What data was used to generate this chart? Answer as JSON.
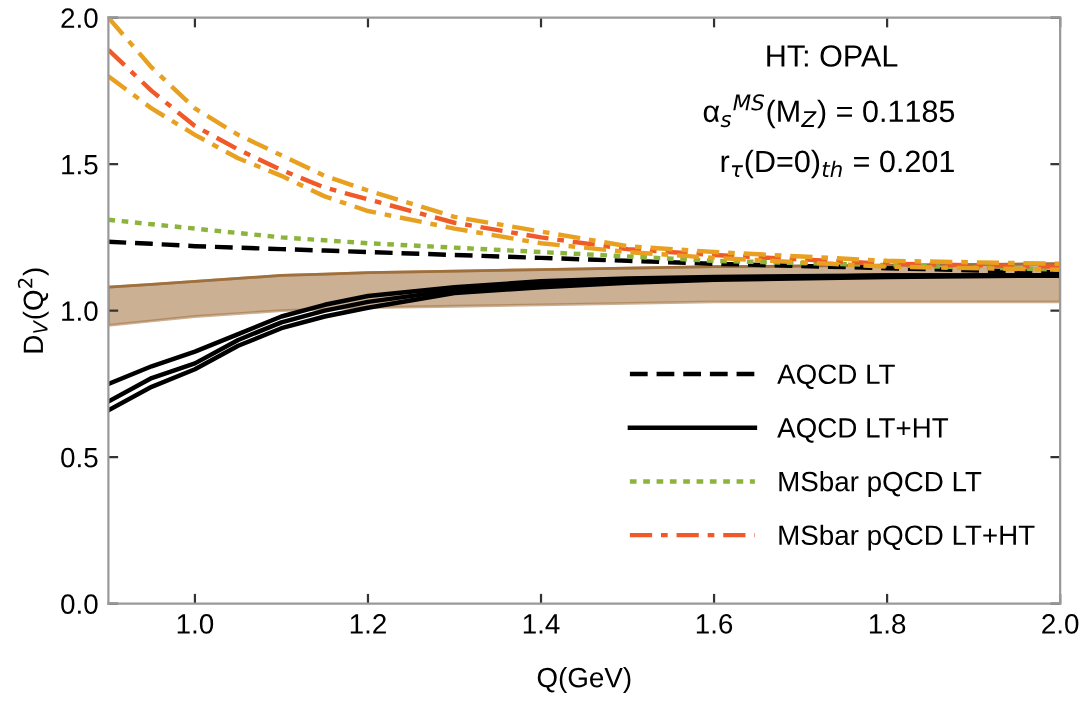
{
  "chart_data": {
    "type": "line",
    "xlabel": "Q(GeV)",
    "ylabel": "D$_{V}$(Q$^{2}$)",
    "annotations": [
      "HT: OPAL",
      "α$_{s}$$^{MS}$(M$_{Z}$) = 0.1185",
      "r$_{τ}$(D=0)$_{th}$ = 0.201"
    ],
    "x": [
      0.9,
      0.95,
      1.0,
      1.05,
      1.1,
      1.15,
      1.2,
      1.3,
      1.4,
      1.5,
      1.6,
      1.8,
      2.0
    ],
    "series": [
      {
        "type": "line",
        "color": "#a0703c",
        "line_style": "solid",
        "values": [
          1.08,
          1.09,
          1.1,
          1.11,
          1.12,
          1.125,
          1.13,
          1.135,
          1.14,
          1.145,
          1.15,
          1.155,
          1.16
        ],
        "upper": [
          1.08,
          1.09,
          1.1,
          1.11,
          1.12,
          1.125,
          1.13,
          1.135,
          1.14,
          1.145,
          1.15,
          1.155,
          1.16
        ],
        "lower": [
          0.95,
          0.965,
          0.98,
          0.99,
          1.0,
          1.005,
          1.01,
          1.015,
          1.02,
          1.025,
          1.03,
          1.03,
          1.03
        ]
      },
      {
        "name": "AQCD LT",
        "color": "#000000",
        "line_style": "dashed",
        "values": [
          1.235,
          1.228,
          1.22,
          1.215,
          1.21,
          1.205,
          1.2,
          1.19,
          1.18,
          1.17,
          1.16,
          1.145,
          1.13
        ]
      },
      {
        "name": "AQCD LT+HT",
        "color": "#000000",
        "line_style": "solid",
        "values": [
          0.69,
          0.77,
          0.82,
          0.9,
          0.96,
          1.0,
          1.03,
          1.07,
          1.09,
          1.1,
          1.11,
          1.12,
          1.12
        ]
      },
      {
        "color": "#000000",
        "line_style": "solid",
        "values": [
          0.75,
          0.81,
          0.86,
          0.92,
          0.98,
          1.02,
          1.05,
          1.08,
          1.1,
          1.11,
          1.115,
          1.12,
          1.12
        ]
      },
      {
        "color": "#000000",
        "line_style": "solid",
        "values": [
          0.66,
          0.74,
          0.8,
          0.88,
          0.94,
          0.98,
          1.01,
          1.06,
          1.08,
          1.095,
          1.105,
          1.115,
          1.12
        ]
      },
      {
        "name": "MSbar pQCD LT",
        "color": "#8cb43c",
        "line_style": "dotted",
        "values": [
          1.31,
          1.295,
          1.28,
          1.265,
          1.25,
          1.24,
          1.23,
          1.215,
          1.2,
          1.185,
          1.17,
          1.155,
          1.14
        ]
      },
      {
        "name": "MSbar pQCD LT+HT",
        "color": "#f05a28",
        "line_style": "dashdot",
        "values": [
          1.89,
          1.75,
          1.63,
          1.55,
          1.48,
          1.42,
          1.38,
          1.3,
          1.25,
          1.21,
          1.19,
          1.16,
          1.15
        ]
      },
      {
        "color": "#e8a020",
        "line_style": "dashdot",
        "values": [
          2.0,
          1.83,
          1.69,
          1.6,
          1.53,
          1.46,
          1.41,
          1.32,
          1.27,
          1.22,
          1.2,
          1.17,
          1.16
        ]
      },
      {
        "color": "#e8a020",
        "line_style": "dashdot",
        "values": [
          1.8,
          1.69,
          1.6,
          1.52,
          1.46,
          1.39,
          1.34,
          1.28,
          1.23,
          1.2,
          1.18,
          1.15,
          1.14
        ]
      }
    ],
    "xlim": [
      0.9,
      2.0
    ],
    "ylim": [
      0.0,
      2.0
    ],
    "xticks": [
      {
        "value": 1.0,
        "label": "1.0"
      },
      1.2,
      1.4,
      1.6,
      1.8,
      {
        "value": 2.0,
        "label": "2.0"
      }
    ],
    "yticks": [
      {
        "value": 0.0,
        "label": "0.0"
      },
      0.5,
      {
        "value": 1.0,
        "label": "1.0"
      },
      1.5,
      {
        "value": 2.0,
        "label": "2.0"
      }
    ],
    "legend": "right",
    "grid": false
  }
}
